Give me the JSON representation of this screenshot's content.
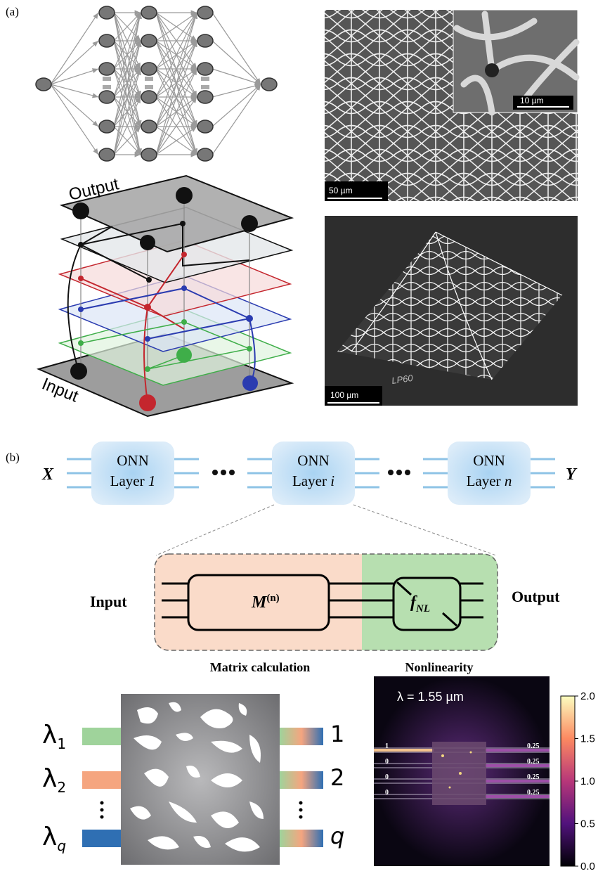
{
  "panel_a": {
    "label": "(a)",
    "planes": {
      "output": "Output",
      "input": "Input"
    },
    "sem_top": {
      "scale_main": "50 µm",
      "scale_inset": "10 µm"
    },
    "sem_bottom": {
      "scale": "100 µm",
      "engraving": "LP60"
    }
  },
  "panel_b": {
    "label": "(b)",
    "input_symbol": "X",
    "output_symbol": "Y",
    "layers": [
      {
        "name": "ONN",
        "word": "Layer",
        "index": "1"
      },
      {
        "name": "ONN",
        "word": "Layer",
        "index": "i"
      },
      {
        "name": "ONN",
        "word": "Layer",
        "index": "n"
      }
    ],
    "detail": {
      "input": "Input",
      "output": "Output",
      "matrix": "M",
      "matrix_sup": "(n)",
      "nonlinear": "f",
      "nonlinear_sub": "NL",
      "matrix_caption": "Matrix calculation",
      "nonlinear_caption": "Nonlinearity"
    },
    "device": {
      "wavelength_symbol": "λ",
      "inputs": [
        "1",
        "2",
        "q"
      ],
      "outputs": [
        "1",
        "2",
        "q"
      ]
    },
    "field": {
      "wavelength": "λ = 1.55 µm",
      "input_powers": [
        "1",
        "0",
        "0",
        "0"
      ],
      "output_powers": [
        "0.25",
        "0.25",
        "0.25",
        "0.25"
      ],
      "colorbar_ticks": [
        "0.0",
        "0.5",
        "1.0",
        "1.5",
        "2.0"
      ]
    }
  }
}
